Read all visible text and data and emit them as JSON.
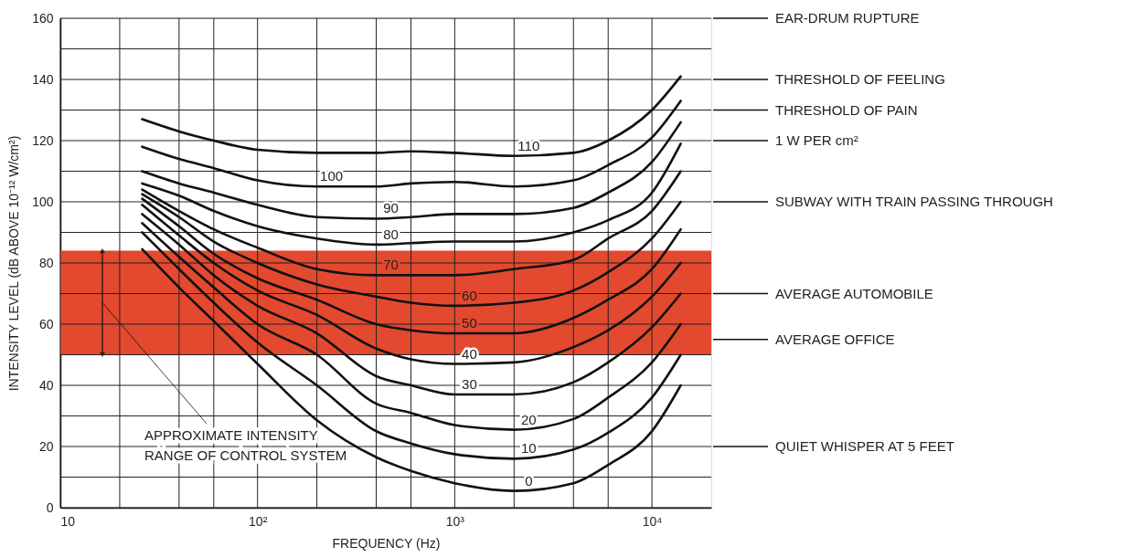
{
  "chart_data": {
    "type": "line",
    "xlabel": "FREQUENCY (Hz)",
    "ylabel": "INTENSITY LEVEL (dB ABOVE 10⁻¹² W/cm²)",
    "log": "x",
    "grid": true,
    "xlim": [
      10,
      20000
    ],
    "xticks": [
      10,
      {
        "value": 20,
        "label": null
      },
      {
        "value": 40,
        "label": null
      },
      {
        "value": 60,
        "label": null
      },
      {
        "value": 100,
        "label": "10²"
      },
      {
        "value": 200,
        "label": null
      },
      {
        "value": 400,
        "label": null
      },
      {
        "value": 600,
        "label": null
      },
      {
        "value": 1000,
        "label": "10³"
      },
      {
        "value": 2000,
        "label": null
      },
      {
        "value": 4000,
        "label": null
      },
      {
        "value": 6000,
        "label": null
      },
      {
        "value": 10000,
        "label": "10⁴"
      }
    ],
    "ylim": [
      0,
      160
    ],
    "yticks": [
      0,
      {
        "value": 10,
        "label": null
      },
      20,
      {
        "value": 30,
        "label": null
      },
      40,
      {
        "value": 50,
        "label": null
      },
      60,
      {
        "value": 70,
        "label": null
      },
      80,
      {
        "value": 90,
        "label": null
      },
      100,
      {
        "value": 110,
        "label": null
      },
      120,
      {
        "value": 130,
        "label": null
      },
      140,
      {
        "value": 150,
        "label": null
      },
      160
    ],
    "x": [
      26,
      40,
      60,
      100,
      200,
      400,
      600,
      1000,
      2000,
      4000,
      6000,
      10000,
      14000
    ],
    "series": [
      {
        "name": "0",
        "color": "#111111",
        "values": [
          84.5,
          72,
          61,
          47,
          28.6,
          16.5,
          12,
          8,
          5.5,
          8,
          14,
          25,
          40
        ]
      },
      {
        "name": "10",
        "color": "#111111",
        "values": [
          90,
          78,
          67,
          54,
          40,
          25,
          21,
          17.5,
          16,
          19,
          24.5,
          36,
          50
        ]
      },
      {
        "name": "20",
        "color": "#111111",
        "values": [
          93,
          82,
          72,
          60,
          50,
          34,
          31,
          27,
          25.5,
          29,
          36,
          47.5,
          60
        ]
      },
      {
        "name": "30",
        "color": "#111111",
        "values": [
          96,
          86,
          76,
          66,
          57,
          43,
          40,
          37,
          37,
          41,
          47.5,
          59,
          70
        ]
      },
      {
        "name": "40",
        "color": "#111111",
        "values": [
          99,
          89,
          80,
          71,
          63,
          52,
          48.5,
          47,
          47.5,
          52.5,
          58,
          69,
          80
        ]
      },
      {
        "name": "50",
        "color": "#111111",
        "values": [
          101,
          92,
          83,
          75,
          68,
          60,
          58,
          57,
          57,
          62,
          68,
          78,
          91
        ]
      },
      {
        "name": "60",
        "color": "#111111",
        "values": [
          102.5,
          95,
          87,
          80,
          73,
          69,
          67,
          66,
          67,
          71,
          77,
          88,
          100
        ]
      },
      {
        "name": "70",
        "color": "#111111",
        "values": [
          104,
          97,
          91,
          85,
          78,
          76,
          76,
          76,
          78,
          81,
          88,
          97,
          110
        ]
      },
      {
        "name": "80",
        "color": "#111111",
        "values": [
          106,
          102,
          97,
          92,
          88,
          86,
          86.5,
          87,
          87,
          90,
          94,
          103,
          119
        ]
      },
      {
        "name": "90",
        "color": "#111111",
        "values": [
          110,
          106,
          103,
          99,
          95,
          94.5,
          95,
          96,
          96,
          98,
          103,
          113,
          126
        ]
      },
      {
        "name": "100",
        "color": "#111111",
        "values": [
          118,
          114,
          111,
          107,
          105,
          105,
          106,
          106.5,
          105,
          107,
          112,
          121,
          133
        ]
      },
      {
        "name": "110",
        "color": "#111111",
        "values": [
          127,
          123,
          120,
          117,
          116,
          116,
          116.5,
          116,
          115,
          116,
          120,
          130,
          141
        ]
      }
    ],
    "bands": [
      {
        "axis": "y",
        "from": 50,
        "to": 84,
        "label": "APPROXIMATE INTENSITY\nRANGE OF CONTROL SYSTEM",
        "color": "#e2492f"
      }
    ],
    "ref_lines": [
      {
        "axis": "y",
        "value": 160,
        "label": "EAR-DRUM RUPTURE"
      },
      {
        "axis": "y",
        "value": 140,
        "label": "THRESHOLD OF FEELING"
      },
      {
        "axis": "y",
        "value": 130,
        "label": "THRESHOLD OF PAIN"
      },
      {
        "axis": "y",
        "value": 120,
        "label": "1 W PER cm²"
      },
      {
        "axis": "y",
        "value": 100,
        "label": "SUBWAY WITH TRAIN PASSING THROUGH"
      },
      {
        "axis": "y",
        "value": 70,
        "label": "AVERAGE AUTOMOBILE"
      },
      {
        "axis": "y",
        "value": 55,
        "label": "AVERAGE OFFICE"
      },
      {
        "axis": "y",
        "value": 20,
        "label": "QUIET WHISPER AT 5 FEET"
      }
    ]
  }
}
